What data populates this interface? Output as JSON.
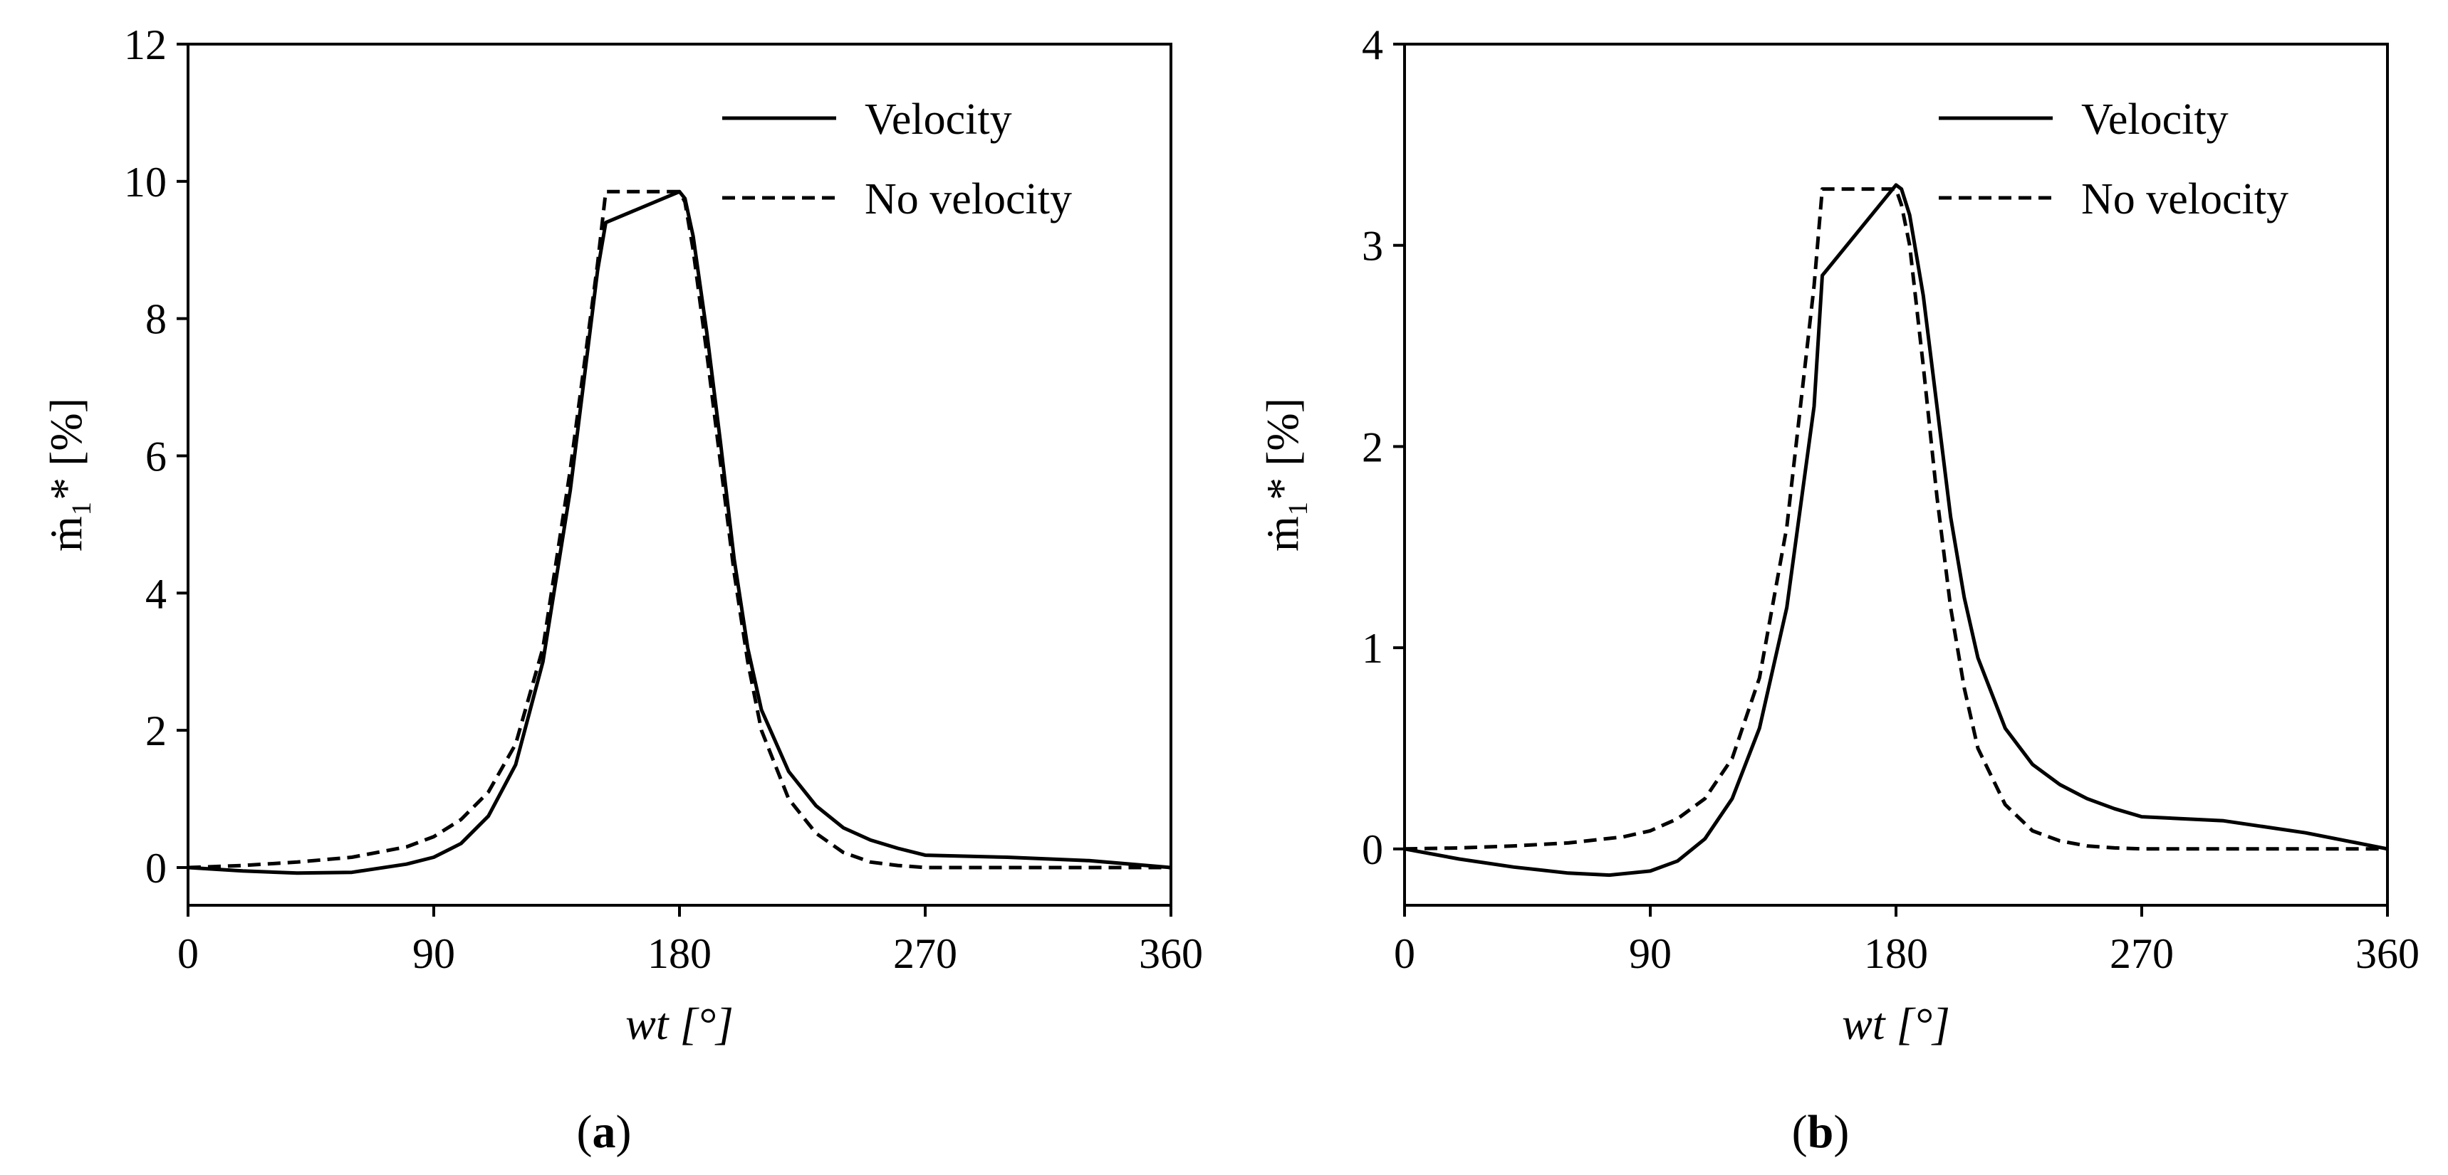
{
  "figure": {
    "panels": [
      {
        "caption_letter": "a",
        "legend": {
          "solid": "Velocity",
          "dashed": "No velocity"
        }
      },
      {
        "caption_letter": "b",
        "legend": {
          "solid": "Velocity",
          "dashed": "No velocity"
        }
      }
    ]
  },
  "chart_data": [
    {
      "type": "line",
      "panel": "a",
      "title": "",
      "xlabel": "wt [°]",
      "ylabel": "ṁ₁* [%]",
      "xlim": [
        0,
        360
      ],
      "ylim": [
        -0.55,
        12
      ],
      "xticks": [
        0,
        90,
        180,
        270,
        360
      ],
      "yticks": [
        0,
        2,
        4,
        6,
        8,
        10,
        12
      ],
      "legend_position": "top-right",
      "grid": false,
      "series": [
        {
          "name": "Velocity",
          "style": "solid",
          "x": [
            0,
            20,
            40,
            60,
            80,
            90,
            100,
            110,
            120,
            130,
            140,
            150,
            153,
            180,
            182,
            185,
            190,
            195,
            200,
            205,
            210,
            220,
            230,
            240,
            250,
            260,
            270,
            300,
            330,
            360
          ],
          "y": [
            0,
            -0.05,
            -0.08,
            -0.07,
            0.05,
            0.15,
            0.35,
            0.75,
            1.5,
            3.0,
            5.5,
            8.7,
            9.4,
            9.85,
            9.75,
            9.2,
            7.8,
            6.2,
            4.5,
            3.2,
            2.3,
            1.4,
            0.9,
            0.58,
            0.4,
            0.28,
            0.18,
            0.15,
            0.1,
            0
          ]
        },
        {
          "name": "No velocity",
          "style": "dashed",
          "x": [
            0,
            20,
            40,
            60,
            80,
            90,
            100,
            110,
            120,
            130,
            140,
            150,
            153,
            180,
            182,
            185,
            190,
            195,
            200,
            205,
            210,
            220,
            230,
            240,
            250,
            260,
            270,
            300,
            330,
            360
          ],
          "y": [
            0,
            0.03,
            0.08,
            0.15,
            0.3,
            0.45,
            0.7,
            1.1,
            1.8,
            3.2,
            5.8,
            8.8,
            9.85,
            9.85,
            9.7,
            9.0,
            7.5,
            5.9,
            4.3,
            3.0,
            2.0,
            1.0,
            0.5,
            0.22,
            0.08,
            0.03,
            0.0,
            0,
            0,
            0
          ]
        }
      ]
    },
    {
      "type": "line",
      "panel": "b",
      "title": "",
      "xlabel": "wt [°]",
      "ylabel": "ṁ₁* [%]",
      "xlim": [
        0,
        360
      ],
      "ylim": [
        -0.28,
        4
      ],
      "xticks": [
        0,
        90,
        180,
        270,
        360
      ],
      "yticks": [
        0,
        1,
        2,
        3,
        4
      ],
      "legend_position": "top-right",
      "grid": false,
      "series": [
        {
          "name": "Velocity",
          "style": "solid",
          "x": [
            0,
            20,
            40,
            60,
            75,
            90,
            100,
            110,
            120,
            130,
            140,
            150,
            153,
            180,
            182,
            185,
            190,
            195,
            200,
            205,
            210,
            220,
            230,
            240,
            250,
            260,
            270,
            300,
            330,
            360
          ],
          "y": [
            0,
            -0.05,
            -0.09,
            -0.12,
            -0.13,
            -0.11,
            -0.06,
            0.05,
            0.25,
            0.6,
            1.2,
            2.2,
            2.85,
            3.3,
            3.28,
            3.15,
            2.75,
            2.2,
            1.65,
            1.25,
            0.95,
            0.6,
            0.42,
            0.32,
            0.25,
            0.2,
            0.16,
            0.14,
            0.08,
            0
          ]
        },
        {
          "name": "No velocity",
          "style": "dashed",
          "x": [
            0,
            20,
            40,
            60,
            80,
            90,
            100,
            110,
            120,
            130,
            140,
            150,
            153,
            180,
            182,
            185,
            190,
            195,
            200,
            205,
            210,
            220,
            230,
            240,
            250,
            260,
            270,
            300,
            330,
            360
          ],
          "y": [
            0,
            0.005,
            0.015,
            0.03,
            0.06,
            0.09,
            0.15,
            0.25,
            0.45,
            0.85,
            1.6,
            2.8,
            3.28,
            3.28,
            3.2,
            3.0,
            2.4,
            1.75,
            1.2,
            0.8,
            0.5,
            0.22,
            0.09,
            0.04,
            0.015,
            0.005,
            0,
            0,
            0,
            0
          ]
        }
      ]
    }
  ]
}
